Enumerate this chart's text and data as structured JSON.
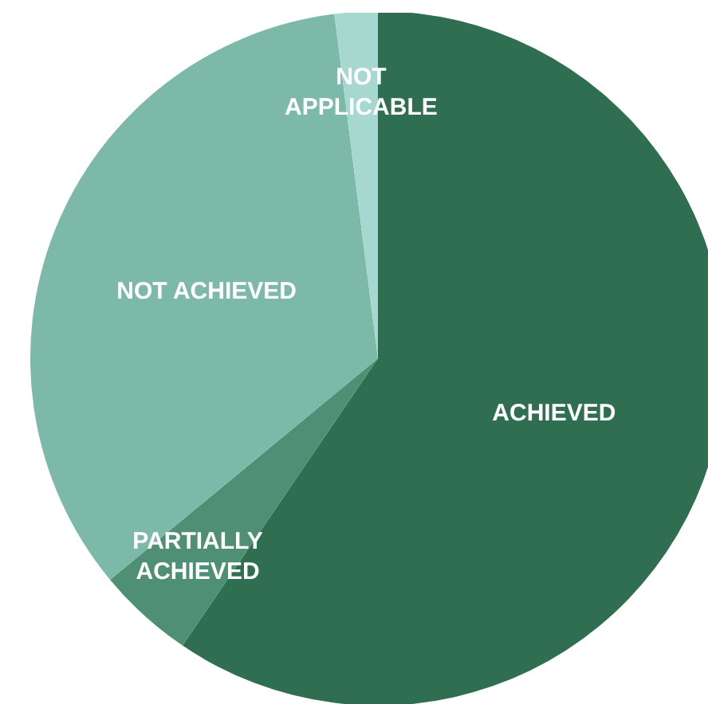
{
  "chart_data": {
    "type": "pie",
    "categories": [
      "ACHIEVED",
      "PARTIALLY ACHIEVED",
      "NOT ACHIEVED",
      "NOT APPLICABLE"
    ],
    "values": [
      59.5,
      4.5,
      34,
      2
    ],
    "colors": [
      "#306e52",
      "#4f8f75",
      "#7db9a9",
      "#a6d8d0"
    ],
    "legend": false
  }
}
